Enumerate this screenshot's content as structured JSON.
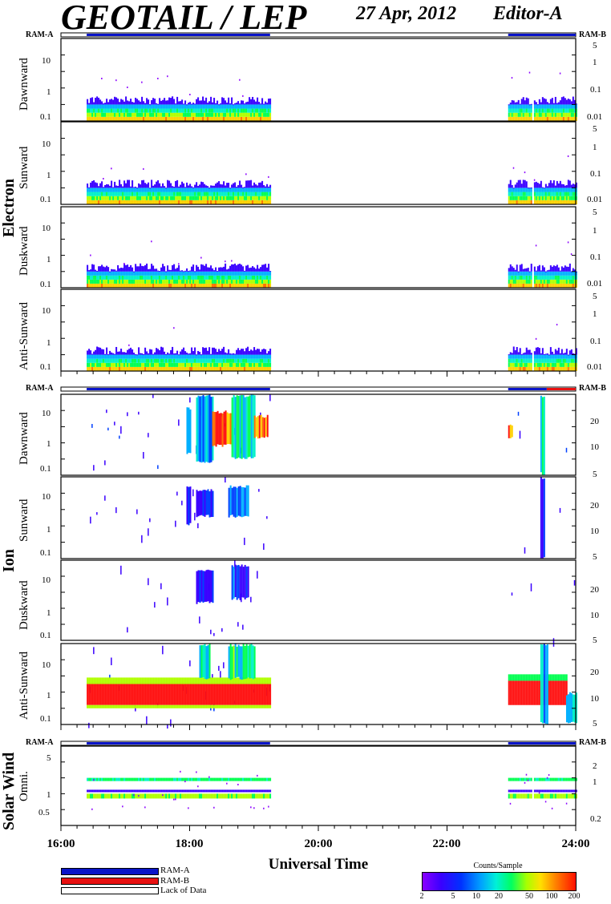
{
  "header": {
    "title": "GEOTAIL / LEP",
    "date": "27 Apr, 2012",
    "editor": "Editor-A"
  },
  "colors": {
    "ram_a": "#0a14c8",
    "ram_b": "#e81010",
    "lack": "#ffffff"
  },
  "groups": [
    {
      "label": "Electron"
    },
    {
      "label": "Ion"
    },
    {
      "label": "Solar Wind"
    }
  ],
  "ram_labels": {
    "a": "RAM-A",
    "b": "RAM-B"
  },
  "chart_data": [
    {
      "type": "heatmap",
      "group": "Electron",
      "xlabel": "Universal Time",
      "xlim_hours": [
        16,
        24
      ],
      "x_ticks": [
        "16:00",
        "18:00",
        "20:00",
        "22:00",
        "24:00"
      ],
      "ram_bar": [
        {
          "mode": "RAM-A",
          "from_hour": 16.4,
          "to_hour": 19.25
        },
        {
          "mode": "RAM-A",
          "from_hour": 22.95,
          "to_hour": 24.0
        }
      ],
      "data_coverage_hours": [
        [
          16.4,
          19.25
        ],
        [
          22.95,
          23.3
        ],
        [
          23.35,
          24.0
        ]
      ],
      "panels": [
        {
          "label": "Dawnward",
          "left_ticks": [
            "0.1",
            "1",
            "10"
          ],
          "right_ticks": [
            "0.01",
            "0.1",
            "1",
            "5"
          ]
        },
        {
          "label": "Sunward",
          "left_ticks": [
            "0.1",
            "1",
            "10"
          ],
          "right_ticks": [
            "0.01",
            "0.1",
            "1",
            "5"
          ]
        },
        {
          "label": "Duskward",
          "left_ticks": [
            "0.1",
            "1",
            "10"
          ],
          "right_ticks": [
            "0.01",
            "0.1",
            "1",
            "5"
          ]
        },
        {
          "label": "Anti-Sunward",
          "left_ticks": [
            "0.1",
            "1",
            "10"
          ],
          "right_ticks": [
            "0.01",
            "0.1",
            "1",
            "5"
          ]
        }
      ]
    },
    {
      "type": "heatmap",
      "group": "Ion",
      "xlim_hours": [
        16,
        24
      ],
      "ram_bar": [
        {
          "mode": "RAM-A",
          "from_hour": 16.4,
          "to_hour": 19.25
        },
        {
          "mode": "RAM-A",
          "from_hour": 22.95,
          "to_hour": 23.55
        },
        {
          "mode": "RAM-B",
          "from_hour": 23.55,
          "to_hour": 24.0
        }
      ],
      "panels": [
        {
          "label": "Dawnward",
          "left_ticks": [
            "0.1",
            "1",
            "10"
          ],
          "right_ticks": [
            "5",
            "10",
            "20"
          ]
        },
        {
          "label": "Sunward",
          "left_ticks": [
            "0.1",
            "1",
            "10"
          ],
          "right_ticks": [
            "5",
            "10",
            "20"
          ]
        },
        {
          "label": "Duskward",
          "left_ticks": [
            "0.1",
            "1",
            "10"
          ],
          "right_ticks": [
            "5",
            "10",
            "20"
          ]
        },
        {
          "label": "Anti-Sunward",
          "left_ticks": [
            "0.1",
            "1",
            "10"
          ],
          "right_ticks": [
            "5",
            "10",
            "20"
          ]
        }
      ]
    },
    {
      "type": "heatmap",
      "group": "Solar Wind",
      "xlim_hours": [
        16,
        24
      ],
      "ram_bar": [
        {
          "mode": "RAM-A",
          "from_hour": 16.4,
          "to_hour": 19.25
        },
        {
          "mode": "RAM-A",
          "from_hour": 22.95,
          "to_hour": 24.0
        }
      ],
      "panels": [
        {
          "label": "Omni.",
          "left_ticks": [
            "0.5",
            "1",
            "5"
          ],
          "right_ticks": [
            "0.2",
            "1",
            "2"
          ]
        }
      ]
    }
  ],
  "legend": {
    "items": [
      {
        "label": "RAM-A",
        "color": "#0a14c8"
      },
      {
        "label": "RAM-B",
        "color": "#e81010"
      },
      {
        "label": "Lack of Data",
        "color": "#ffffff"
      }
    ]
  },
  "colorbar": {
    "title": "Counts/Sample",
    "ticks": [
      "2",
      "5",
      "10",
      "20",
      "50",
      "100",
      "200"
    ]
  }
}
